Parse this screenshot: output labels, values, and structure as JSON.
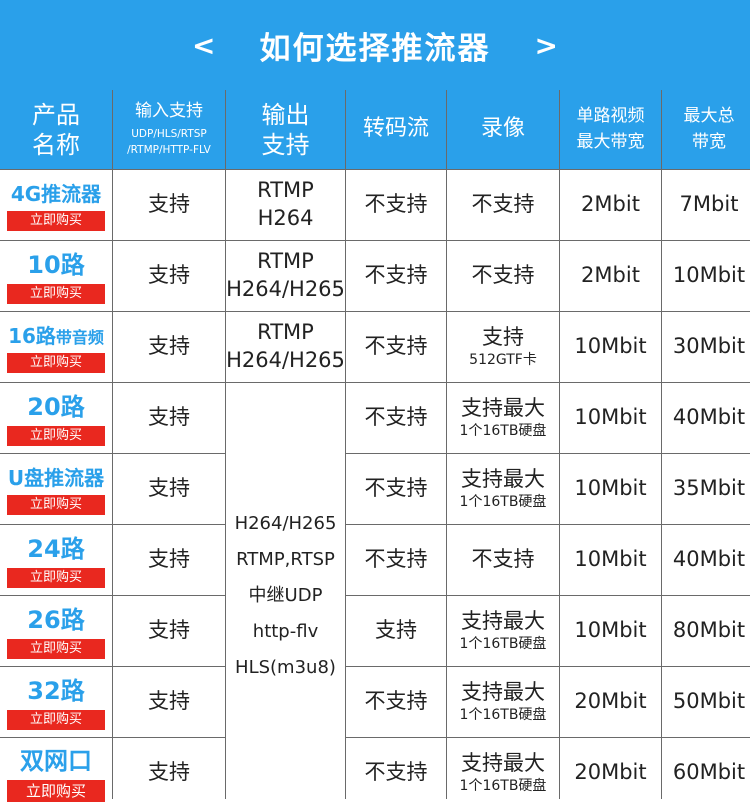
{
  "banner": {
    "title": "如何选择推流器",
    "prev_arrow": "<",
    "next_arrow": ">"
  },
  "header": {
    "col1": [
      "产品",
      "名称"
    ],
    "col2_title": "输入支持",
    "col2_sub": [
      "UDP/HLS/RTSP",
      "/RTMP/HTTP-FLV"
    ],
    "col3": [
      "输出",
      "支持"
    ],
    "col4": "转码流",
    "col5": "录像",
    "col6": [
      "单路视频",
      "最大带宽"
    ],
    "col7": [
      "最大总",
      "带宽"
    ]
  },
  "buy_label": "立即购买",
  "rows": [
    {
      "name": "4G推流器",
      "input": "支持",
      "output": [
        "RTMP",
        "H264"
      ],
      "transcode": "不支持",
      "record": [
        "不支持"
      ],
      "single_bw": "2Mbit",
      "total_bw": "7Mbit"
    },
    {
      "name": "10路",
      "input": "支持",
      "output": [
        "RTMP",
        "H264/H265"
      ],
      "transcode": "不支持",
      "record": [
        "不支持"
      ],
      "single_bw": "2Mbit",
      "total_bw": "10Mbit"
    },
    {
      "name": "16路",
      "name_suffix": "带音频",
      "input": "支持",
      "output": [
        "RTMP",
        "H264/H265"
      ],
      "transcode": "不支持",
      "record": [
        "支持",
        "512GTF卡"
      ],
      "single_bw": "10Mbit",
      "total_bw": "30Mbit"
    },
    {
      "name": "20路",
      "input": "支持",
      "transcode": "不支持",
      "record": [
        "支持最大",
        "1个16TB硬盘"
      ],
      "single_bw": "10Mbit",
      "total_bw": "40Mbit"
    },
    {
      "name": "U盘推流器",
      "input": "支持",
      "transcode": "不支持",
      "record": [
        "支持最大",
        "1个16TB硬盘"
      ],
      "single_bw": "10Mbit",
      "total_bw": "35Mbit"
    },
    {
      "name": "24路",
      "input": "支持",
      "transcode": "不支持",
      "record": [
        "不支持"
      ],
      "single_bw": "10Mbit",
      "total_bw": "40Mbit"
    },
    {
      "name": "26路",
      "input": "支持",
      "transcode": "支持",
      "record": [
        "支持最大",
        "1个16TB硬盘"
      ],
      "single_bw": "10Mbit",
      "total_bw": "80Mbit"
    },
    {
      "name": "32路",
      "input": "支持",
      "transcode": "不支持",
      "record": [
        "支持最大",
        "1个16TB硬盘"
      ],
      "single_bw": "20Mbit",
      "total_bw": "50Mbit"
    },
    {
      "name": "双网口",
      "input": "支持",
      "transcode": "不支持",
      "record": [
        "支持最大",
        "1个16TB硬盘"
      ],
      "single_bw": "20Mbit",
      "total_bw": "60Mbit"
    }
  ],
  "merged_output": [
    "H264/H265",
    "RTMP,RTSP",
    "中继UDP",
    "http-flv",
    "HLS(m3u8)"
  ]
}
